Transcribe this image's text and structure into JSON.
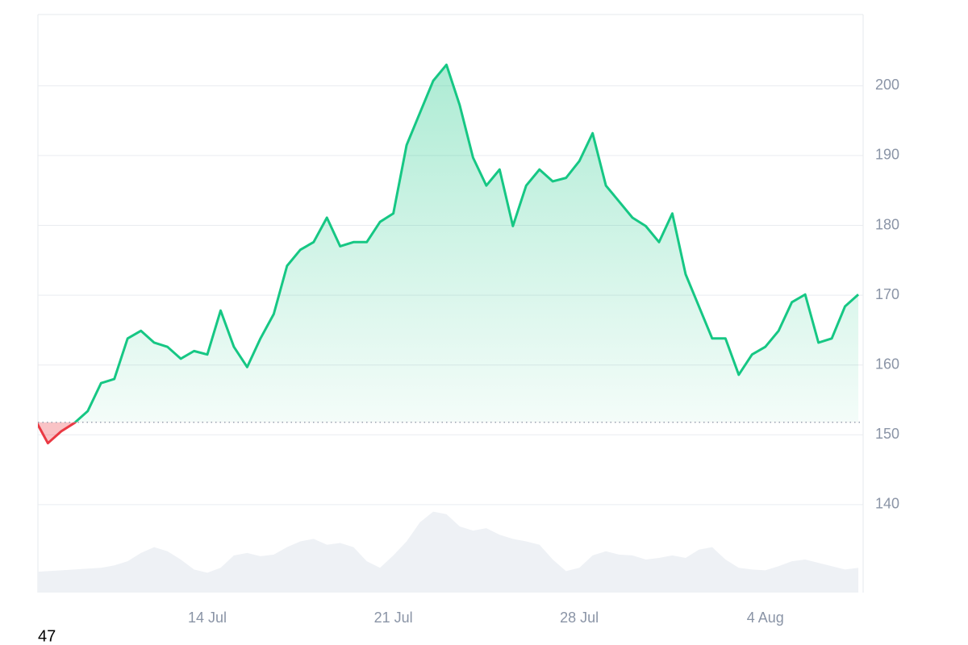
{
  "chart_data": {
    "type": "line",
    "categories": [
      null,
      null,
      null,
      null,
      null,
      null,
      null,
      null,
      null,
      null,
      null,
      null,
      null,
      "14 Jul",
      null,
      null,
      null,
      null,
      null,
      null,
      null,
      null,
      null,
      null,
      null,
      null,
      null,
      "21 Jul",
      null,
      null,
      null,
      null,
      null,
      null,
      null,
      null,
      null,
      null,
      null,
      null,
      null,
      "28 Jul",
      null,
      null,
      null,
      null,
      null,
      null,
      null,
      null,
      null,
      null,
      null,
      null,
      null,
      "4 Aug",
      null,
      null,
      null,
      null,
      null,
      null,
      null
    ],
    "series": [
      {
        "color": "#16c784",
        "down_color": "#ea3943",
        "values": [
          152.3,
          148.8,
          150.5,
          151.7,
          153.4,
          157.4,
          158,
          163.8,
          164.9,
          163.2,
          162.6,
          160.9,
          162,
          161.5,
          167.8,
          162.6,
          159.7,
          163.8,
          167.3,
          174.2,
          176.5,
          177.6,
          181.1,
          177,
          177.6,
          177.6,
          180.5,
          181.7,
          191.5,
          196.1,
          200.7,
          203,
          197.2,
          189.7,
          185.7,
          188,
          179.9,
          185.7,
          188,
          186.3,
          186.8,
          189.2,
          193.2,
          185.7,
          183.4,
          181.1,
          179.9,
          177.6,
          181.7,
          173,
          168.4,
          163.8,
          163.8,
          158.6,
          161.5,
          162.6,
          164.9,
          169,
          170.1,
          163.2,
          163.8,
          168.4,
          170.1
        ]
      },
      {
        "color": "#eef1f5",
        "axis": "y2",
        "values": [
          25,
          26,
          27,
          28,
          29,
          30,
          33,
          38,
          48,
          55,
          50,
          40,
          28,
          24,
          30,
          45,
          48,
          44,
          46,
          55,
          62,
          65,
          58,
          60,
          55,
          38,
          30,
          45,
          62,
          85,
          98,
          95,
          80,
          75,
          78,
          70,
          65,
          62,
          58,
          40,
          26,
          30,
          45,
          50,
          46,
          45,
          40,
          42,
          45,
          42,
          52,
          55,
          40,
          30,
          28,
          27,
          32,
          38,
          40,
          36,
          32,
          28,
          30
        ]
      }
    ],
    "baseline": 151.8,
    "ylim": [
      127.4,
      210.2
    ],
    "yticks": [
      140,
      150,
      160,
      170,
      180,
      190,
      200
    ],
    "y2lim": [
      0,
      700
    ],
    "grid": true,
    "footer_text": "47"
  }
}
